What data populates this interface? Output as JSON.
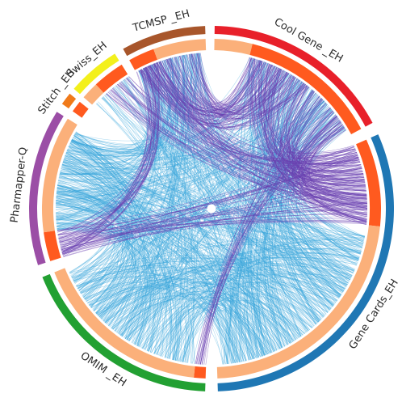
{
  "diagram": {
    "type": "chord",
    "segments": [
      {
        "id": "cool",
        "label": "Cool Gene _EH",
        "color": "#e8202a"
      },
      {
        "id": "genecards",
        "label": "Gene Cards_EH",
        "color": "#1f77b4"
      },
      {
        "id": "omim",
        "label": "OMIM _EH",
        "color": "#22a032"
      },
      {
        "id": "pharm",
        "label": "Pharmapper-Q",
        "color": "#9b4ea6"
      },
      {
        "id": "stitch",
        "label": "Stitch _EH",
        "color": "#f07a1a"
      },
      {
        "id": "swiss",
        "label": "Swiss_EH",
        "color": "#f3f01c"
      },
      {
        "id": "tcmsp",
        "label": "TCMSP _EH",
        "color": "#a8562b"
      }
    ],
    "inner_ring_colors": {
      "shared": "#ff5a1f",
      "unique": "#fbb07a"
    },
    "link_colors": {
      "shared_links": "#6a3fb0",
      "other_links": "#3aa6dc"
    }
  }
}
